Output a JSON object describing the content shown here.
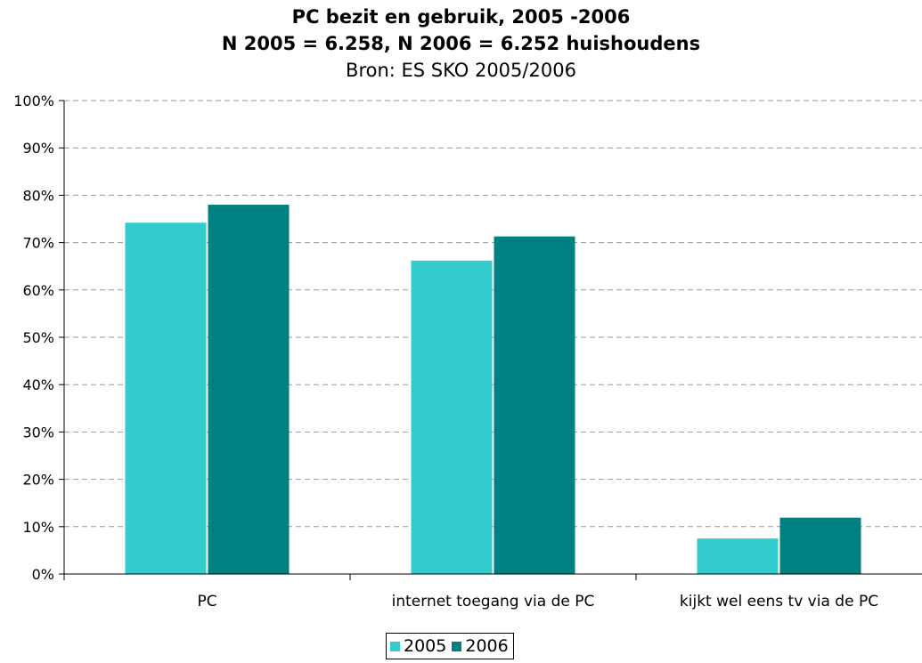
{
  "chart_data": {
    "type": "bar",
    "title": "PC bezit en gebruik, 2005 -2006",
    "title_line2": "N 2005 = 6.258, N 2006 = 6.252 huishoudens",
    "subtitle": "Bron: ES SKO 2005/2006",
    "xlabel": "",
    "ylabel": "",
    "categories": [
      "PC",
      "internet toegang via de PC",
      "kijkt wel eens tv via de PC"
    ],
    "series": [
      {
        "name": "2005",
        "values": [
          74.2,
          66.2,
          7.5
        ],
        "color": "#33CCCC"
      },
      {
        "name": "2006",
        "values": [
          78.0,
          71.3,
          11.9
        ],
        "color": "#008080"
      }
    ],
    "ylim": [
      0,
      100
    ],
    "yticks": [
      "0%",
      "10%",
      "20%",
      "30%",
      "40%",
      "50%",
      "60%",
      "70%",
      "80%",
      "90%",
      "100%"
    ],
    "grid": true,
    "legend_position": "bottom-center"
  }
}
